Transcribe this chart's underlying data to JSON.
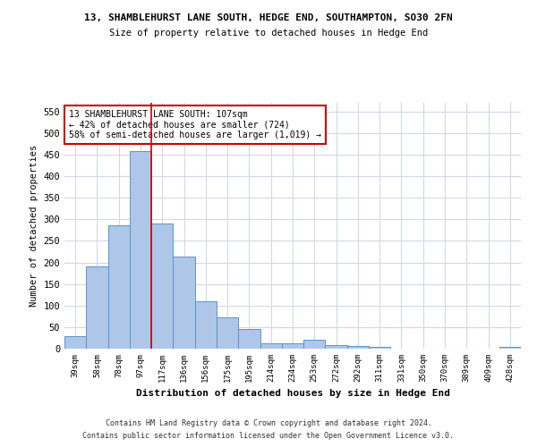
{
  "title_line1": "13, SHAMBLEHURST LANE SOUTH, HEDGE END, SOUTHAMPTON, SO30 2FN",
  "title_line2": "Size of property relative to detached houses in Hedge End",
  "xlabel": "Distribution of detached houses by size in Hedge End",
  "ylabel": "Number of detached properties",
  "categories": [
    "39sqm",
    "58sqm",
    "78sqm",
    "97sqm",
    "117sqm",
    "136sqm",
    "156sqm",
    "175sqm",
    "195sqm",
    "214sqm",
    "234sqm",
    "253sqm",
    "272sqm",
    "292sqm",
    "311sqm",
    "331sqm",
    "350sqm",
    "370sqm",
    "389sqm",
    "409sqm",
    "428sqm"
  ],
  "values": [
    28,
    191,
    286,
    458,
    290,
    213,
    110,
    73,
    46,
    12,
    12,
    20,
    9,
    6,
    5,
    0,
    0,
    0,
    0,
    0,
    5
  ],
  "bar_color": "#aec6e8",
  "bar_edge_color": "#5a96c8",
  "property_line_x": 3.5,
  "annotation_text": "13 SHAMBLEHURST LANE SOUTH: 107sqm\n← 42% of detached houses are smaller (724)\n58% of semi-detached houses are larger (1,019) →",
  "annotation_box_color": "#ffffff",
  "annotation_box_edge_color": "#cc0000",
  "red_line_color": "#cc0000",
  "ylim": [
    0,
    570
  ],
  "yticks": [
    0,
    50,
    100,
    150,
    200,
    250,
    300,
    350,
    400,
    450,
    500,
    550
  ],
  "grid_color": "#d0d8e8",
  "background_color": "#ffffff",
  "footer_line1": "Contains HM Land Registry data © Crown copyright and database right 2024.",
  "footer_line2": "Contains public sector information licensed under the Open Government Licence v3.0."
}
